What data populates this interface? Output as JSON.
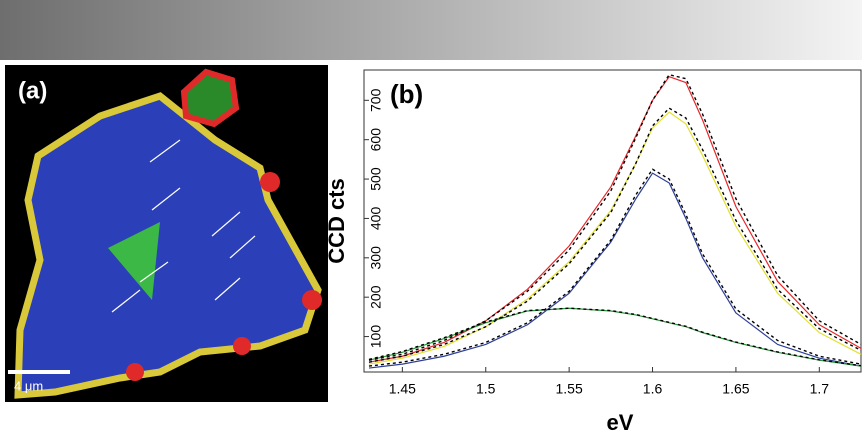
{
  "panel_a": {
    "label": "(a)",
    "scale_bar": "4 μm"
  },
  "chart_data": {
    "type": "line",
    "panel_label": "(b)",
    "x_label": "eV",
    "y_label": "CCD cts",
    "x": [
      1.43,
      1.45,
      1.475,
      1.5,
      1.525,
      1.55,
      1.575,
      1.59,
      1.6,
      1.61,
      1.62,
      1.63,
      1.65,
      1.675,
      1.7,
      1.725
    ],
    "series": [
      {
        "color": "#e8272a",
        "style": "solid",
        "values": [
          35,
          50,
          85,
          140,
          220,
          330,
          480,
          610,
          700,
          760,
          745,
          650,
          430,
          240,
          130,
          70
        ]
      },
      {
        "color": "#e3e032",
        "style": "solid",
        "values": [
          30,
          45,
          75,
          125,
          195,
          290,
          420,
          540,
          630,
          670,
          640,
          560,
          380,
          210,
          110,
          55
        ]
      },
      {
        "color": "#2e3f9a",
        "style": "solid",
        "values": [
          20,
          30,
          50,
          80,
          130,
          210,
          340,
          450,
          515,
          490,
          400,
          300,
          160,
          80,
          45,
          25
        ]
      },
      {
        "color": "#2a9a3a",
        "style": "solid",
        "values": [
          40,
          60,
          95,
          135,
          165,
          172,
          165,
          155,
          145,
          135,
          125,
          110,
          85,
          60,
          40,
          25
        ]
      },
      {
        "color": "#000000",
        "style": "dashed",
        "values": [
          40,
          55,
          90,
          140,
          215,
          320,
          470,
          605,
          700,
          765,
          755,
          665,
          450,
          255,
          140,
          80
        ]
      },
      {
        "color": "#000000",
        "style": "dashed",
        "values": [
          35,
          50,
          80,
          125,
          190,
          285,
          415,
          540,
          635,
          680,
          655,
          575,
          395,
          220,
          120,
          65
        ]
      },
      {
        "color": "#000000",
        "style": "dashed",
        "values": [
          25,
          35,
          55,
          85,
          135,
          215,
          345,
          460,
          525,
          500,
          410,
          310,
          170,
          90,
          50,
          30
        ]
      },
      {
        "color": "#000000",
        "style": "dashed",
        "values": [
          42,
          62,
          97,
          137,
          166,
          172,
          166,
          156,
          146,
          136,
          126,
          111,
          86,
          61,
          41,
          26
        ]
      }
    ],
    "xlim": [
      1.427,
      1.725
    ],
    "ylim": [
      10,
      777
    ],
    "xticks": [
      1.45,
      1.5,
      1.55,
      1.6,
      1.65,
      1.7
    ],
    "yticks": [
      100,
      200,
      300,
      400,
      500,
      600,
      700
    ]
  }
}
